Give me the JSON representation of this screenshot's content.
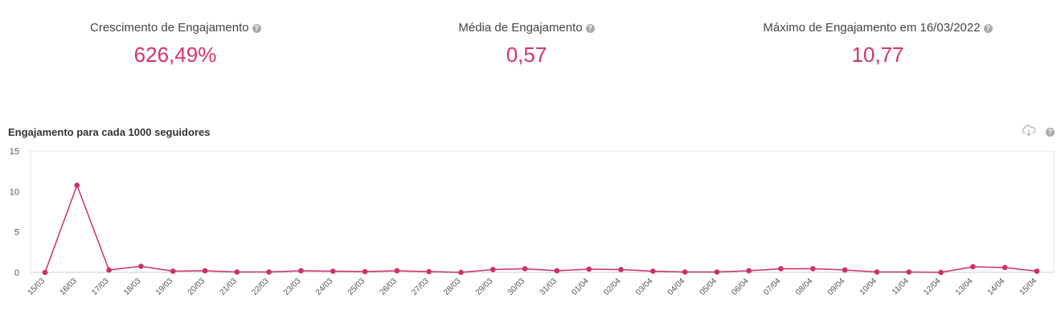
{
  "kpis": [
    {
      "label": "Crescimento de Engajamento",
      "value": "626,49%"
    },
    {
      "label": "Média de Engajamento",
      "value": "0,57"
    },
    {
      "label": "Máximo de Engajamento em 16/03/2022",
      "value": "10,77"
    }
  ],
  "colors": {
    "accent": "#d6336c",
    "line": "#cc2f6e",
    "grid": "#e8e8e8",
    "axis": "#cccccc"
  },
  "chart_data": {
    "type": "line",
    "title": "Engajamento para cada 1000 seguidores",
    "xlabel": "",
    "ylabel": "",
    "ylim": [
      0,
      15
    ],
    "yticks": [
      0,
      5,
      10,
      15
    ],
    "grid": false,
    "categories": [
      "15/03",
      "16/03",
      "17/03",
      "18/03",
      "19/03",
      "20/03",
      "21/03",
      "22/03",
      "23/03",
      "24/03",
      "25/03",
      "26/03",
      "27/03",
      "28/03",
      "29/03",
      "30/03",
      "31/03",
      "01/04",
      "02/04",
      "03/04",
      "04/04",
      "05/04",
      "06/04",
      "07/04",
      "08/04",
      "09/04",
      "10/04",
      "11/04",
      "12/04",
      "13/04",
      "14/04",
      "15/04"
    ],
    "series": [
      {
        "values": [
          0.0,
          10.77,
          0.3,
          0.75,
          0.15,
          0.2,
          0.05,
          0.05,
          0.2,
          0.15,
          0.1,
          0.2,
          0.1,
          0.0,
          0.35,
          0.45,
          0.2,
          0.4,
          0.35,
          0.15,
          0.05,
          0.05,
          0.2,
          0.45,
          0.45,
          0.3,
          0.05,
          0.05,
          0.0,
          0.7,
          0.6,
          0.15
        ]
      }
    ]
  }
}
